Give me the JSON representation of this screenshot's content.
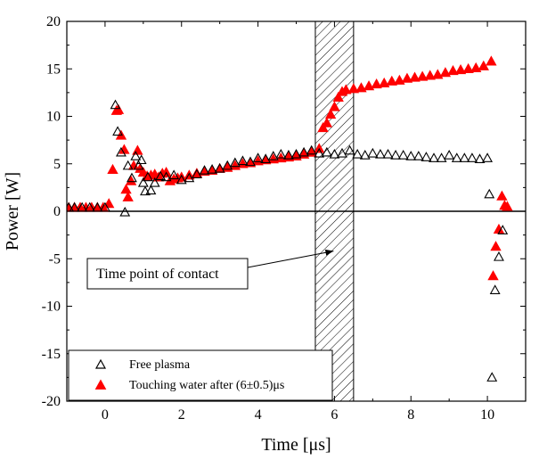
{
  "chart_data": {
    "type": "scatter",
    "xlabel": "Time [μs]",
    "ylabel": "Power [W]",
    "xlim": [
      -1,
      11
    ],
    "ylim": [
      -20,
      20
    ],
    "x_ticks": [
      0,
      2,
      4,
      6,
      8,
      10
    ],
    "y_ticks": [
      -20,
      -15,
      -10,
      -5,
      0,
      5,
      10,
      15,
      20
    ],
    "zero_line": true,
    "hatched_band": {
      "x_from": 5.5,
      "x_to": 6.5,
      "meaning": "contact window"
    },
    "annotation": {
      "text": "Time point of contact",
      "arrow_target": {
        "x": 6.0,
        "y": -4.0
      }
    },
    "legend": {
      "position": "bottom-left"
    },
    "series": [
      {
        "name": "Free plasma",
        "marker": "open-triangle",
        "color": "#000000",
        "points": [
          [
            -0.95,
            0.4
          ],
          [
            -0.8,
            0.4
          ],
          [
            -0.6,
            0.4
          ],
          [
            -0.4,
            0.4
          ],
          [
            -0.2,
            0.4
          ],
          [
            0.0,
            0.4
          ],
          [
            0.27,
            11.2
          ],
          [
            0.33,
            8.4
          ],
          [
            0.42,
            6.2
          ],
          [
            0.52,
            -0.1
          ],
          [
            0.6,
            4.8
          ],
          [
            0.7,
            3.5
          ],
          [
            0.8,
            5.8
          ],
          [
            0.88,
            4.8
          ],
          [
            0.95,
            5.4
          ],
          [
            1.0,
            3.0
          ],
          [
            1.05,
            2.1
          ],
          [
            1.12,
            3.6
          ],
          [
            1.2,
            2.2
          ],
          [
            1.3,
            3.0
          ],
          [
            1.45,
            3.7
          ],
          [
            1.6,
            3.6
          ],
          [
            1.8,
            3.8
          ],
          [
            2.0,
            3.3
          ],
          [
            2.2,
            3.5
          ],
          [
            2.4,
            3.9
          ],
          [
            2.6,
            4.3
          ],
          [
            2.8,
            4.4
          ],
          [
            3.0,
            4.5
          ],
          [
            3.2,
            4.8
          ],
          [
            3.4,
            5.1
          ],
          [
            3.6,
            5.3
          ],
          [
            3.8,
            5.2
          ],
          [
            4.0,
            5.6
          ],
          [
            4.2,
            5.5
          ],
          [
            4.4,
            5.8
          ],
          [
            4.6,
            6.0
          ],
          [
            4.8,
            5.9
          ],
          [
            5.0,
            6.0
          ],
          [
            5.2,
            6.2
          ],
          [
            5.4,
            6.4
          ],
          [
            5.6,
            6.1
          ],
          [
            5.8,
            6.2
          ],
          [
            6.0,
            6.0
          ],
          [
            6.2,
            6.1
          ],
          [
            6.4,
            6.4
          ],
          [
            6.6,
            6.0
          ],
          [
            6.8,
            5.9
          ],
          [
            7.0,
            6.1
          ],
          [
            7.2,
            6.0
          ],
          [
            7.4,
            6.0
          ],
          [
            7.6,
            5.9
          ],
          [
            7.8,
            5.9
          ],
          [
            8.0,
            5.8
          ],
          [
            8.2,
            5.8
          ],
          [
            8.4,
            5.7
          ],
          [
            8.6,
            5.6
          ],
          [
            8.8,
            5.6
          ],
          [
            9.0,
            5.9
          ],
          [
            9.2,
            5.6
          ],
          [
            9.4,
            5.6
          ],
          [
            9.6,
            5.6
          ],
          [
            9.8,
            5.5
          ],
          [
            10.0,
            5.6
          ],
          [
            10.05,
            1.8
          ],
          [
            10.12,
            -17.5
          ],
          [
            10.2,
            -8.3
          ],
          [
            10.3,
            -4.8
          ],
          [
            10.4,
            -2.0
          ]
        ]
      },
      {
        "name": "Touching water after (6±0.5)μs",
        "marker": "filled-triangle",
        "color": "#ff0000",
        "points": [
          [
            -0.95,
            0.4
          ],
          [
            -0.8,
            0.4
          ],
          [
            -0.65,
            0.4
          ],
          [
            -0.5,
            0.4
          ],
          [
            -0.35,
            0.4
          ],
          [
            -0.2,
            0.4
          ],
          [
            -0.05,
            0.4
          ],
          [
            0.1,
            0.8
          ],
          [
            0.2,
            4.4
          ],
          [
            0.3,
            10.6
          ],
          [
            0.35,
            10.7
          ],
          [
            0.42,
            8.0
          ],
          [
            0.5,
            6.5
          ],
          [
            0.55,
            2.3
          ],
          [
            0.6,
            1.5
          ],
          [
            0.68,
            3.2
          ],
          [
            0.75,
            4.8
          ],
          [
            0.85,
            6.4
          ],
          [
            0.92,
            4.5
          ],
          [
            1.0,
            4.1
          ],
          [
            1.1,
            3.7
          ],
          [
            1.2,
            3.8
          ],
          [
            1.3,
            3.9
          ],
          [
            1.4,
            3.6
          ],
          [
            1.5,
            4.0
          ],
          [
            1.6,
            4.1
          ],
          [
            1.7,
            3.2
          ],
          [
            1.8,
            3.4
          ],
          [
            1.9,
            3.5
          ],
          [
            2.0,
            3.6
          ],
          [
            2.2,
            3.8
          ],
          [
            2.4,
            4.0
          ],
          [
            2.6,
            4.2
          ],
          [
            2.8,
            4.3
          ],
          [
            3.0,
            4.5
          ],
          [
            3.2,
            4.6
          ],
          [
            3.4,
            4.8
          ],
          [
            3.6,
            5.0
          ],
          [
            3.8,
            5.1
          ],
          [
            4.0,
            5.3
          ],
          [
            4.2,
            5.4
          ],
          [
            4.4,
            5.5
          ],
          [
            4.6,
            5.6
          ],
          [
            4.8,
            5.7
          ],
          [
            5.0,
            5.8
          ],
          [
            5.2,
            6.0
          ],
          [
            5.4,
            6.2
          ],
          [
            5.6,
            6.6
          ],
          [
            5.7,
            8.8
          ],
          [
            5.8,
            9.3
          ],
          [
            5.9,
            10.2
          ],
          [
            6.0,
            11.0
          ],
          [
            6.1,
            12.0
          ],
          [
            6.2,
            12.6
          ],
          [
            6.3,
            12.8
          ],
          [
            6.5,
            12.9
          ],
          [
            6.7,
            13.0
          ],
          [
            6.9,
            13.2
          ],
          [
            7.1,
            13.4
          ],
          [
            7.3,
            13.5
          ],
          [
            7.5,
            13.7
          ],
          [
            7.7,
            13.8
          ],
          [
            7.9,
            14.0
          ],
          [
            8.1,
            14.1
          ],
          [
            8.3,
            14.2
          ],
          [
            8.5,
            14.3
          ],
          [
            8.7,
            14.4
          ],
          [
            8.9,
            14.6
          ],
          [
            9.1,
            14.8
          ],
          [
            9.3,
            14.9
          ],
          [
            9.5,
            15.0
          ],
          [
            9.7,
            15.1
          ],
          [
            9.9,
            15.3
          ],
          [
            10.1,
            15.8
          ],
          [
            10.15,
            -6.8
          ],
          [
            10.22,
            -3.7
          ],
          [
            10.3,
            -1.9
          ],
          [
            10.38,
            1.6
          ],
          [
            10.45,
            0.6
          ],
          [
            10.52,
            0.5
          ]
        ]
      }
    ]
  }
}
